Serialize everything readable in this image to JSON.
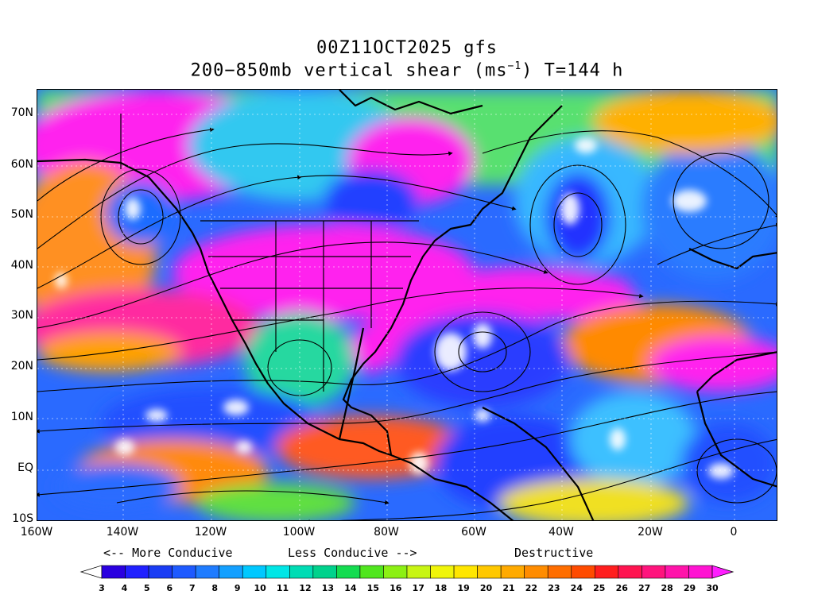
{
  "title_line1": "00Z11OCT2025 gfs",
  "title_line2_prefix": "200−850mb vertical shear (ms",
  "title_line2_sup": "−1",
  "title_line2_suffix": ") T=144 h",
  "latitude_labels": [
    "70N",
    "60N",
    "50N",
    "40N",
    "30N",
    "20N",
    "10N",
    "EQ",
    "10S"
  ],
  "longitude_labels": [
    "160W",
    "140W",
    "120W",
    "100W",
    "80W",
    "60W",
    "40W",
    "20W",
    "0"
  ],
  "legend_text": {
    "more_conducive": "<-- More Conducive",
    "less_conducive": "Less Conducive -->",
    "destructive": "Destructive"
  },
  "colorbar": {
    "values": [
      "3",
      "4",
      "5",
      "6",
      "7",
      "8",
      "9",
      "10",
      "11",
      "12",
      "13",
      "14",
      "15",
      "16",
      "17",
      "18",
      "19",
      "20",
      "21",
      "22",
      "23",
      "24",
      "25",
      "26",
      "27",
      "28",
      "29",
      "30"
    ],
    "colors": [
      "#ffffff",
      "#2a00e0",
      "#2020ff",
      "#1a3cf4",
      "#1e5aff",
      "#1f7cff",
      "#14a0ff",
      "#00c8ff",
      "#00e6e6",
      "#00dcb4",
      "#00d28c",
      "#14dc50",
      "#50e61e",
      "#8cf014",
      "#c8f514",
      "#f0f50a",
      "#ffe600",
      "#ffc800",
      "#ffaa00",
      "#ff8c00",
      "#ff6e00",
      "#ff4b00",
      "#ff1e1e",
      "#ff1450",
      "#ff147d",
      "#ff14aa",
      "#ff14d2",
      "#ff1eff"
    ]
  }
}
